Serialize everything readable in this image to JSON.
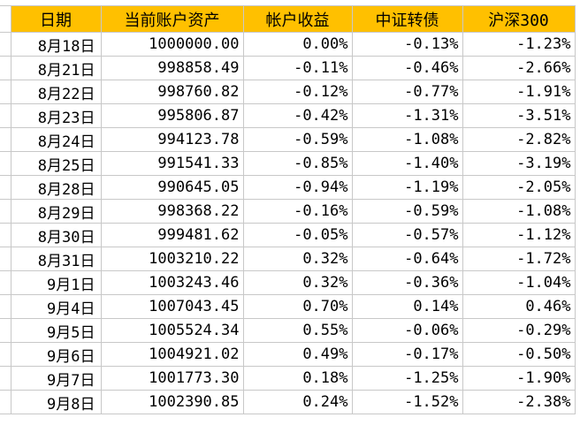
{
  "table": {
    "header": [
      "日期",
      "当前账户资产",
      "帐户收益",
      "中证转债",
      "沪深300"
    ],
    "rows": [
      [
        "8月18日",
        "1000000.00",
        "0.00%",
        "-0.13%",
        "-1.23%"
      ],
      [
        "8月21日",
        "998858.49",
        "-0.11%",
        "-0.46%",
        "-2.66%"
      ],
      [
        "8月22日",
        "998760.82",
        "-0.12%",
        "-0.77%",
        "-1.91%"
      ],
      [
        "8月23日",
        "995806.87",
        "-0.42%",
        "-1.31%",
        "-3.51%"
      ],
      [
        "8月24日",
        "994123.78",
        "-0.59%",
        "-1.08%",
        "-2.82%"
      ],
      [
        "8月25日",
        "991541.33",
        "-0.85%",
        "-1.40%",
        "-3.19%"
      ],
      [
        "8月28日",
        "990645.05",
        "-0.94%",
        "-1.19%",
        "-2.05%"
      ],
      [
        "8月29日",
        "998368.22",
        "-0.16%",
        "-0.59%",
        "-1.08%"
      ],
      [
        "8月30日",
        "999481.62",
        "-0.05%",
        "-0.57%",
        "-1.12%"
      ],
      [
        "8月31日",
        "1003210.22",
        "0.32%",
        "-0.64%",
        "-1.72%"
      ],
      [
        "9月1日",
        "1003243.46",
        "0.32%",
        "-0.36%",
        "-1.04%"
      ],
      [
        "9月4日",
        "1007043.45",
        "0.70%",
        "0.14%",
        "0.46%"
      ],
      [
        "9月5日",
        "1005524.34",
        "0.55%",
        "-0.06%",
        "-0.29%"
      ],
      [
        "9月6日",
        "1004921.02",
        "0.49%",
        "-0.17%",
        "-0.50%"
      ],
      [
        "9月7日",
        "1001773.30",
        "0.18%",
        "-1.25%",
        "-1.90%"
      ],
      [
        "9月8日",
        "1002390.85",
        "0.24%",
        "-1.52%",
        "-2.38%"
      ]
    ]
  }
}
